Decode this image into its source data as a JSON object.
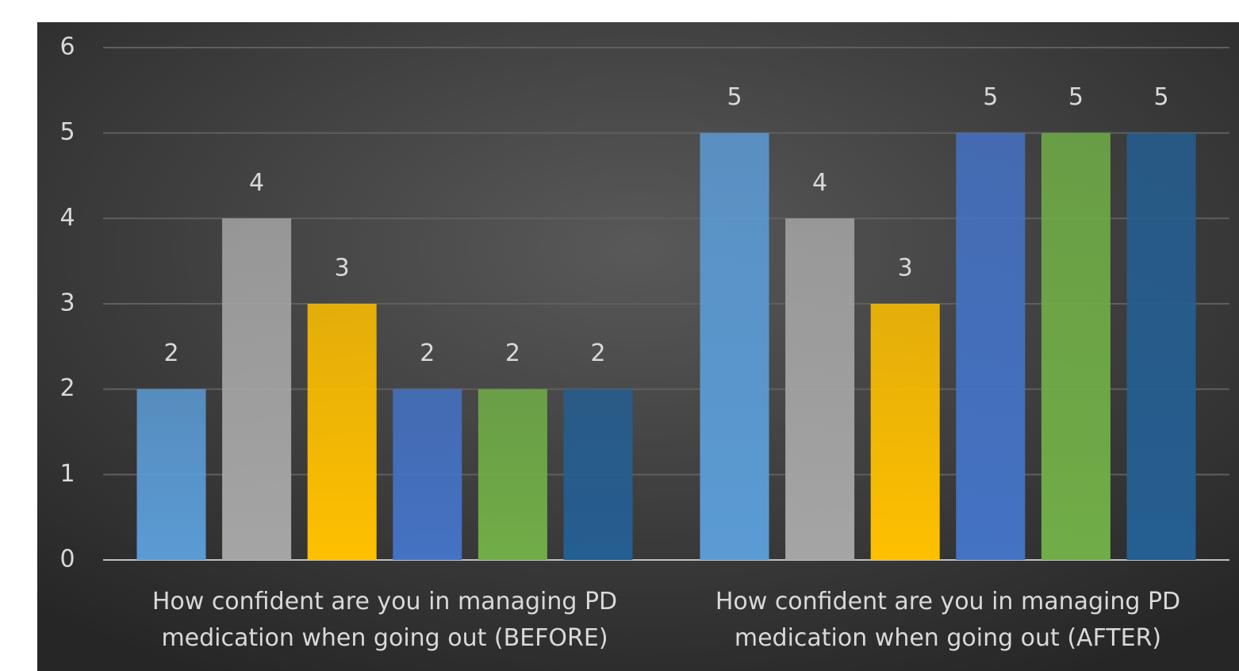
{
  "chart_data": {
    "type": "bar",
    "categories": [
      "How confident are you in managing PD medication when going out (BEFORE)",
      "How confident are you in managing PD medication when going out (AFTER)"
    ],
    "series": [
      {
        "color": "#5b9bd5",
        "values": [
          2,
          5
        ]
      },
      {
        "color": "#a5a5a5",
        "values": [
          4,
          4
        ]
      },
      {
        "color": "#ffc000",
        "values": [
          3,
          3
        ]
      },
      {
        "color": "#4472c4",
        "values": [
          2,
          5
        ]
      },
      {
        "color": "#70ad47",
        "values": [
          2,
          5
        ]
      },
      {
        "color": "#255e91",
        "values": [
          2,
          5
        ]
      }
    ],
    "ylim": [
      0,
      6
    ],
    "yticks": [
      0,
      1,
      2,
      3,
      4,
      5,
      6
    ],
    "grid": true,
    "data_labels": true
  }
}
